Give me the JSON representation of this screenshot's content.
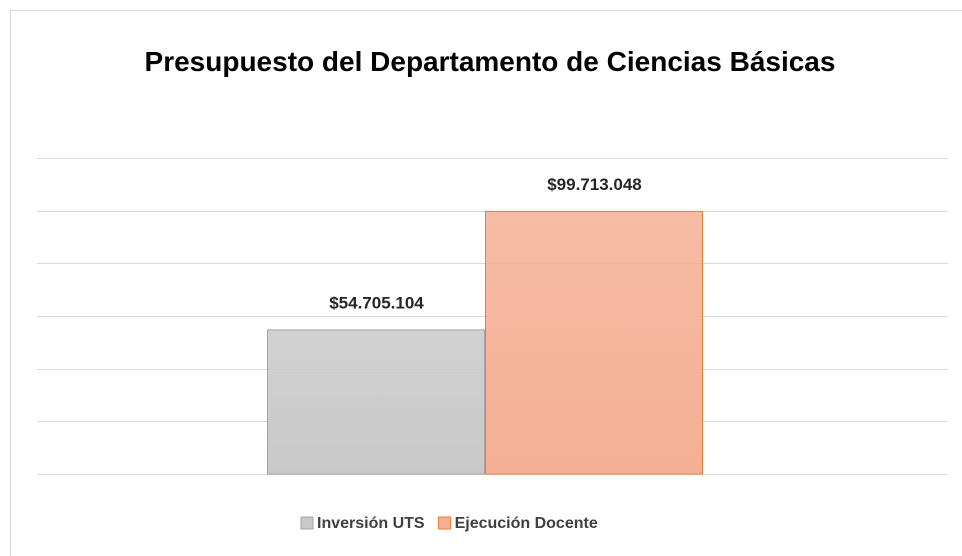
{
  "chart_data": {
    "type": "bar",
    "title": "Presupuesto del Departamento de Ciencias Básicas",
    "categories": [
      null
    ],
    "series": [
      {
        "name": "Inversión UTS",
        "color": "#c9c9c9",
        "border": "#a5a5a5",
        "values": [
          54705104
        ],
        "value_labels": [
          "$54.705.104"
        ]
      },
      {
        "name": "Ejecución Docente",
        "color": "#f4b094",
        "border": "#ed7d31",
        "values": [
          99713048
        ],
        "value_labels": [
          "$99.713.048"
        ]
      }
    ],
    "ylim": [
      0,
      120000000
    ],
    "yticks": [
      0,
      20000000,
      40000000,
      60000000,
      80000000,
      100000000,
      120000000
    ],
    "grid": true,
    "legend": "bottom"
  }
}
